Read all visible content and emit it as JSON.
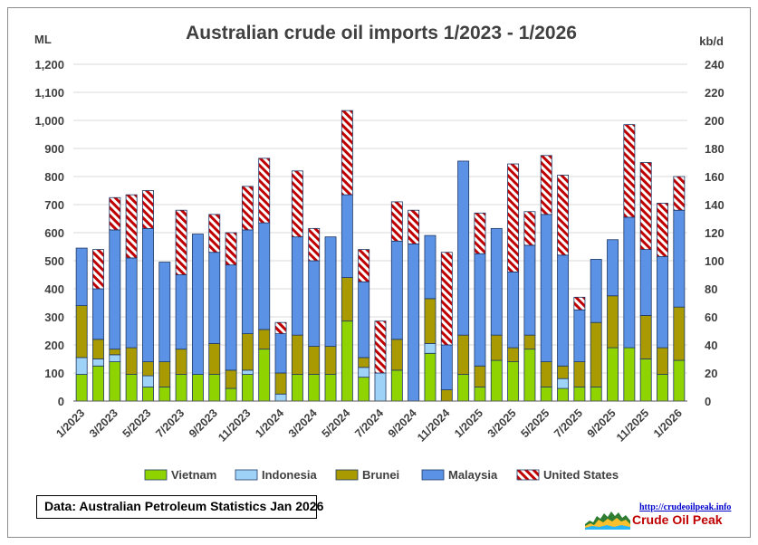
{
  "chart_data": {
    "type": "bar",
    "stacked": true,
    "title": "Australian crude oil imports 1/2023 - 1/2026",
    "ylabel_left": "ML",
    "ylabel_right": "kb/d",
    "ylim_left": [
      0,
      1200
    ],
    "ylim_right": [
      0,
      240
    ],
    "yticks_left": [
      "0",
      "100",
      "200",
      "300",
      "400",
      "500",
      "600",
      "700",
      "800",
      "900",
      "1,000",
      "1,100",
      "1,200"
    ],
    "yticks_right": [
      "0",
      "20",
      "40",
      "60",
      "80",
      "100",
      "120",
      "140",
      "160",
      "180",
      "200",
      "220",
      "240"
    ],
    "grid": true,
    "legend_position": "bottom",
    "categories": [
      "1/2023",
      "2/2023",
      "3/2023",
      "4/2023",
      "5/2023",
      "6/2023",
      "7/2023",
      "8/2023",
      "9/2023",
      "10/2023",
      "11/2023",
      "12/2023",
      "1/2024",
      "2/2024",
      "3/2024",
      "4/2024",
      "5/2024",
      "6/2024",
      "7/2024",
      "8/2024",
      "9/2024",
      "10/2024",
      "11/2024",
      "12/2024",
      "1/2025",
      "2/2025",
      "3/2025",
      "4/2025",
      "5/2025",
      "6/2025",
      "7/2025",
      "8/2025",
      "9/2025",
      "10/2025",
      "11/2025",
      "12/2025",
      "1/2026"
    ],
    "xtick_labels": [
      "1/2023",
      "",
      "3/2023",
      "",
      "5/2023",
      "",
      "7/2023",
      "",
      "9/2023",
      "",
      "11/2023",
      "",
      "1/2024",
      "",
      "3/2024",
      "",
      "5/2024",
      "",
      "7/2024",
      "",
      "9/2024",
      "",
      "11/2024",
      "",
      "1/2025",
      "",
      "3/2025",
      "",
      "5/2025",
      "",
      "7/2025",
      "",
      "9/2025",
      "",
      "11/2025",
      "",
      "1/2026"
    ],
    "series": [
      {
        "name": "Vietnam",
        "color": "#8fd400",
        "values": [
          95,
          125,
          140,
          95,
          50,
          50,
          95,
          95,
          95,
          45,
          95,
          185,
          0,
          95,
          95,
          95,
          285,
          85,
          0,
          110,
          0,
          170,
          0,
          95,
          50,
          145,
          140,
          185,
          50,
          45,
          50,
          50,
          190,
          190,
          150,
          95,
          145
        ]
      },
      {
        "name": "Indonesia",
        "color": "#9fd2f7",
        "values": [
          60,
          25,
          25,
          0,
          40,
          0,
          0,
          0,
          0,
          0,
          15,
          0,
          25,
          0,
          0,
          0,
          0,
          35,
          100,
          0,
          0,
          35,
          0,
          0,
          0,
          0,
          0,
          0,
          0,
          35,
          0,
          0,
          0,
          0,
          0,
          0,
          0
        ]
      },
      {
        "name": "Brunei",
        "color": "#a89a00",
        "values": [
          185,
          70,
          20,
          95,
          50,
          90,
          90,
          0,
          110,
          65,
          130,
          70,
          75,
          140,
          100,
          100,
          155,
          35,
          0,
          110,
          0,
          160,
          40,
          140,
          75,
          90,
          50,
          50,
          90,
          45,
          90,
          230,
          185,
          0,
          155,
          95,
          190
        ]
      },
      {
        "name": "Malaysia",
        "color": "#5b92e5",
        "values": [
          205,
          180,
          425,
          320,
          475,
          355,
          265,
          500,
          325,
          375,
          370,
          380,
          140,
          350,
          305,
          390,
          295,
          270,
          0,
          350,
          560,
          225,
          160,
          620,
          400,
          380,
          270,
          320,
          525,
          395,
          185,
          225,
          200,
          465,
          235,
          325,
          345
        ]
      },
      {
        "name": "United States",
        "color": "#c00000",
        "pattern": "hatch",
        "values": [
          0,
          140,
          115,
          225,
          135,
          0,
          230,
          0,
          135,
          115,
          155,
          230,
          40,
          235,
          115,
          0,
          300,
          115,
          185,
          140,
          120,
          0,
          330,
          0,
          145,
          0,
          385,
          120,
          210,
          285,
          45,
          0,
          0,
          330,
          310,
          190,
          120
        ]
      }
    ]
  },
  "source_note": "Data: Australian Petroleum Statistics Jan 2026",
  "logo": {
    "url_text": "http://crudeoilpeak.info",
    "name": "Crude Oil Peak"
  }
}
